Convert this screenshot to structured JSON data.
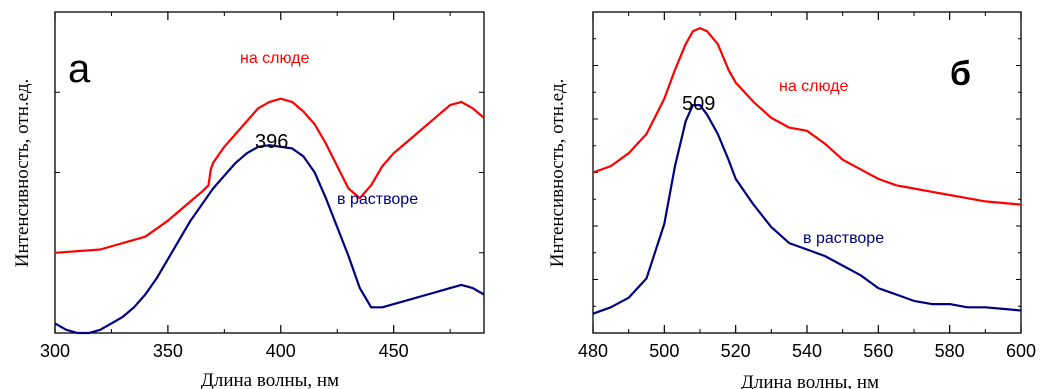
{
  "chart_data": [
    {
      "type": "line",
      "panel_label": "а",
      "xlabel": "Длина волны, нм",
      "ylabel": "Интенсивность, отн.ед.",
      "xlim": [
        300,
        490
      ],
      "ylim": [
        0,
        1
      ],
      "xticks": [
        300,
        350,
        400,
        450
      ],
      "y_tick_labels": false,
      "grid": false,
      "peak_label": {
        "text": "396",
        "x": 396
      },
      "series": [
        {
          "name": "на слюде",
          "color": "#ff0000",
          "x": [
            300,
            320,
            340,
            350,
            355,
            360,
            365,
            368,
            369,
            370,
            375,
            380,
            385,
            390,
            395,
            400,
            405,
            410,
            415,
            420,
            425,
            430,
            435,
            440,
            445,
            450,
            455,
            460,
            465,
            470,
            475,
            480,
            485,
            490
          ],
          "y": [
            0.25,
            0.26,
            0.3,
            0.35,
            0.38,
            0.41,
            0.44,
            0.46,
            0.51,
            0.53,
            0.58,
            0.62,
            0.66,
            0.7,
            0.72,
            0.73,
            0.72,
            0.69,
            0.65,
            0.59,
            0.52,
            0.45,
            0.42,
            0.46,
            0.52,
            0.56,
            0.59,
            0.62,
            0.65,
            0.68,
            0.71,
            0.72,
            0.7,
            0.67
          ]
        },
        {
          "name": "в растворе",
          "color": "#000080",
          "x": [
            300,
            305,
            310,
            315,
            320,
            325,
            330,
            335,
            340,
            345,
            350,
            355,
            360,
            365,
            370,
            375,
            380,
            385,
            390,
            395,
            400,
            405,
            410,
            415,
            420,
            425,
            430,
            435,
            440,
            445,
            450,
            455,
            460,
            465,
            470,
            475,
            480,
            485,
            490
          ],
          "y": [
            0.03,
            0.01,
            0.0,
            0.0,
            0.01,
            0.03,
            0.05,
            0.08,
            0.12,
            0.17,
            0.23,
            0.29,
            0.35,
            0.4,
            0.45,
            0.49,
            0.53,
            0.56,
            0.58,
            0.585,
            0.58,
            0.575,
            0.55,
            0.5,
            0.42,
            0.33,
            0.24,
            0.14,
            0.08,
            0.08,
            0.09,
            0.1,
            0.11,
            0.12,
            0.13,
            0.14,
            0.15,
            0.14,
            0.12
          ]
        }
      ]
    },
    {
      "type": "line",
      "panel_label": "б",
      "xlabel": "Длина волны, нм",
      "ylabel": "Интенсивность, отн.ед.",
      "xlim": [
        480,
        600
      ],
      "ylim": [
        0,
        1
      ],
      "xticks": [
        480,
        500,
        520,
        540,
        560,
        580,
        600
      ],
      "y_tick_labels": false,
      "grid": false,
      "peak_label": {
        "text": "509",
        "x": 509
      },
      "series": [
        {
          "name": "на слюде",
          "color": "#ff0000",
          "x": [
            480,
            485,
            490,
            495,
            500,
            503,
            506,
            508,
            510,
            512,
            515,
            518,
            520,
            525,
            530,
            535,
            540,
            545,
            550,
            555,
            560,
            565,
            570,
            575,
            580,
            585,
            590,
            595,
            600
          ],
          "y": [
            0.5,
            0.52,
            0.56,
            0.62,
            0.73,
            0.82,
            0.9,
            0.94,
            0.95,
            0.94,
            0.9,
            0.82,
            0.78,
            0.72,
            0.67,
            0.64,
            0.63,
            0.59,
            0.54,
            0.51,
            0.48,
            0.46,
            0.45,
            0.44,
            0.43,
            0.42,
            0.41,
            0.405,
            0.4
          ]
        },
        {
          "name": "в растворе",
          "color": "#000080",
          "x": [
            480,
            485,
            490,
            495,
            500,
            503,
            506,
            508,
            510,
            512,
            515,
            518,
            520,
            525,
            530,
            535,
            540,
            545,
            550,
            555,
            560,
            565,
            570,
            575,
            580,
            585,
            590,
            595,
            600
          ],
          "y": [
            0.06,
            0.08,
            0.11,
            0.17,
            0.34,
            0.52,
            0.66,
            0.71,
            0.71,
            0.68,
            0.62,
            0.54,
            0.48,
            0.4,
            0.33,
            0.28,
            0.26,
            0.24,
            0.21,
            0.18,
            0.14,
            0.12,
            0.1,
            0.09,
            0.09,
            0.08,
            0.08,
            0.075,
            0.07
          ]
        }
      ]
    }
  ]
}
